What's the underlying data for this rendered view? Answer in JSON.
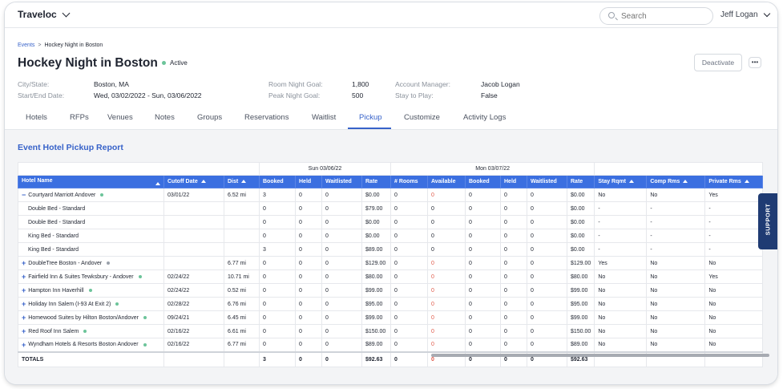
{
  "app": {
    "name": "Traveloc"
  },
  "search": {
    "placeholder": "Search"
  },
  "user": {
    "name": "Jeff Logan"
  },
  "breadcrumb": {
    "parent": "Events",
    "separator": ">",
    "current": "Hockey Night in Boston"
  },
  "event": {
    "title": "Hockey Night in Boston",
    "status": "Active",
    "deactivate_label": "Deactivate",
    "more_label": "•••"
  },
  "details": {
    "city_state_label": "City/State:",
    "city_state": "Boston, MA",
    "dates_label": "Start/End Date:",
    "dates": "Wed, 03/02/2022 - Sun, 03/06/2022",
    "room_goal_label": "Room Night Goal:",
    "room_goal": "1,800",
    "peak_goal_label": "Peak Night Goal:",
    "peak_goal": "500",
    "manager_label": "Account Manager:",
    "manager": "Jacob Logan",
    "stay_label": "Stay to Play:",
    "stay": "False"
  },
  "tabs": [
    {
      "label": "Hotels"
    },
    {
      "label": "RFPs"
    },
    {
      "label": "Venues"
    },
    {
      "label": "Notes"
    },
    {
      "label": "Groups"
    },
    {
      "label": "Reservations"
    },
    {
      "label": "Waitlist"
    },
    {
      "label": "Pickup"
    },
    {
      "label": "Customize"
    },
    {
      "label": "Activity Logs"
    }
  ],
  "active_tab": "Pickup",
  "report": {
    "title": "Event Hotel Pickup Report",
    "group_headers": {
      "sun": "Sun 03/06/22",
      "mon": "Mon 03/07/22"
    },
    "columns": {
      "hotel": "Hotel Name",
      "cutoff": "Cutoff Date",
      "dist": "Dist",
      "booked": "Booked",
      "held": "Held",
      "waitlisted": "Waitlisted",
      "rate": "Rate",
      "rooms": "# Rooms",
      "available": "Available",
      "stay": "Stay Rqmt",
      "comp": "Comp Rms",
      "private": "Private Rms"
    },
    "rows": [
      {
        "name": "Courtyard Marriott Andover",
        "expand": "−",
        "cutoff": "03/01/22",
        "dist": "6.52 mi",
        "s_booked": "3",
        "s_held": "0",
        "s_wait": "0",
        "s_rate": "$0.00",
        "m_rooms": "0",
        "m_avail": "0",
        "m_booked": "0",
        "m_held": "0",
        "m_wait": "0",
        "m_rate": "$0.00",
        "stay": "No",
        "comp": "No",
        "private": "Yes"
      },
      {
        "name": "Double Bed - Standard",
        "sub": true,
        "cutoff": "",
        "dist": "",
        "s_booked": "0",
        "s_held": "0",
        "s_wait": "0",
        "s_rate": "$79.00",
        "m_rooms": "0",
        "m_avail": "0",
        "m_booked": "0",
        "m_held": "0",
        "m_wait": "0",
        "m_rate": "$0.00",
        "stay": "-",
        "comp": "-",
        "private": "-"
      },
      {
        "name": "Double Bed - Standard",
        "sub": true,
        "cutoff": "",
        "dist": "",
        "s_booked": "0",
        "s_held": "0",
        "s_wait": "0",
        "s_rate": "$0.00",
        "m_rooms": "0",
        "m_avail": "0",
        "m_booked": "0",
        "m_held": "0",
        "m_wait": "0",
        "m_rate": "$0.00",
        "stay": "-",
        "comp": "-",
        "private": "-"
      },
      {
        "name": "King Bed - Standard",
        "sub": true,
        "cutoff": "",
        "dist": "",
        "s_booked": "0",
        "s_held": "0",
        "s_wait": "0",
        "s_rate": "$0.00",
        "m_rooms": "0",
        "m_avail": "0",
        "m_booked": "0",
        "m_held": "0",
        "m_wait": "0",
        "m_rate": "$0.00",
        "stay": "-",
        "comp": "-",
        "private": "-"
      },
      {
        "name": "King Bed - Standard",
        "sub": true,
        "cutoff": "",
        "dist": "",
        "s_booked": "3",
        "s_held": "0",
        "s_wait": "0",
        "s_rate": "$89.00",
        "m_rooms": "0",
        "m_avail": "0",
        "m_booked": "0",
        "m_held": "0",
        "m_wait": "0",
        "m_rate": "$0.00",
        "stay": "-",
        "comp": "-",
        "private": "-"
      },
      {
        "name": "DoubleTree Boston - Andover",
        "expand": "+",
        "cutoff": "",
        "dist": "6.77 mi",
        "s_booked": "0",
        "s_held": "0",
        "s_wait": "0",
        "s_rate": "$129.00",
        "m_rooms": "0",
        "m_avail": "0",
        "m_booked": "0",
        "m_held": "0",
        "m_wait": "0",
        "m_rate": "$129.00",
        "stay": "Yes",
        "comp": "No",
        "private": "No"
      },
      {
        "name": "Fairfield Inn & Suites Tewksbury - Andover",
        "expand": "+",
        "cutoff": "02/24/22",
        "dist": "10.71 mi",
        "s_booked": "0",
        "s_held": "0",
        "s_wait": "0",
        "s_rate": "$80.00",
        "m_rooms": "0",
        "m_avail": "0",
        "m_booked": "0",
        "m_held": "0",
        "m_wait": "0",
        "m_rate": "$80.00",
        "stay": "No",
        "comp": "No",
        "private": "Yes"
      },
      {
        "name": "Hampton Inn Haverhill",
        "expand": "+",
        "cutoff": "02/24/22",
        "dist": "0.52 mi",
        "s_booked": "0",
        "s_held": "0",
        "s_wait": "0",
        "s_rate": "$99.00",
        "m_rooms": "0",
        "m_avail": "0",
        "m_booked": "0",
        "m_held": "0",
        "m_wait": "0",
        "m_rate": "$99.00",
        "stay": "No",
        "comp": "No",
        "private": "No"
      },
      {
        "name": "Holiday Inn Salem (I-93 At Exit 2)",
        "expand": "+",
        "cutoff": "02/28/22",
        "dist": "6.76 mi",
        "s_booked": "0",
        "s_held": "0",
        "s_wait": "0",
        "s_rate": "$95.00",
        "m_rooms": "0",
        "m_avail": "0",
        "m_booked": "0",
        "m_held": "0",
        "m_wait": "0",
        "m_rate": "$95.00",
        "stay": "No",
        "comp": "No",
        "private": "No"
      },
      {
        "name": "Homewood Suites by Hilton Boston/Andover",
        "expand": "+",
        "cutoff": "09/24/21",
        "dist": "6.45 mi",
        "s_booked": "0",
        "s_held": "0",
        "s_wait": "0",
        "s_rate": "$99.00",
        "m_rooms": "0",
        "m_avail": "0",
        "m_booked": "0",
        "m_held": "0",
        "m_wait": "0",
        "m_rate": "$99.00",
        "stay": "No",
        "comp": "No",
        "private": "No"
      },
      {
        "name": "Red Roof Inn Salem",
        "expand": "+",
        "cutoff": "02/16/22",
        "dist": "6.61 mi",
        "s_booked": "0",
        "s_held": "0",
        "s_wait": "0",
        "s_rate": "$150.00",
        "m_rooms": "0",
        "m_avail": "0",
        "m_booked": "0",
        "m_held": "0",
        "m_wait": "0",
        "m_rate": "$150.00",
        "stay": "No",
        "comp": "No",
        "private": "No"
      },
      {
        "name": "Wyndham Hotels & Resorts Boston Andover",
        "expand": "+",
        "cutoff": "02/16/22",
        "dist": "6.77 mi",
        "s_booked": "0",
        "s_held": "0",
        "s_wait": "0",
        "s_rate": "$89.00",
        "m_rooms": "0",
        "m_avail": "0",
        "m_booked": "0",
        "m_held": "0",
        "m_wait": "0",
        "m_rate": "$89.00",
        "stay": "No",
        "comp": "No",
        "private": "No"
      }
    ],
    "totals": {
      "label": "TOTALS",
      "s_booked": "3",
      "s_held": "0",
      "s_wait": "0",
      "s_rate": "$92.63",
      "m_rooms": "0",
      "m_avail": "0",
      "m_booked": "0",
      "m_held": "0",
      "m_wait": "0",
      "m_rate": "$92.63"
    }
  },
  "support": {
    "label": "SUPPORT"
  },
  "colors": {
    "accent": "#3762c9",
    "header_blue": "#3b6fe0",
    "active_dot": "#6cc49a",
    "red_value": "#e05a4a",
    "support_bg": "#1f3b73"
  }
}
